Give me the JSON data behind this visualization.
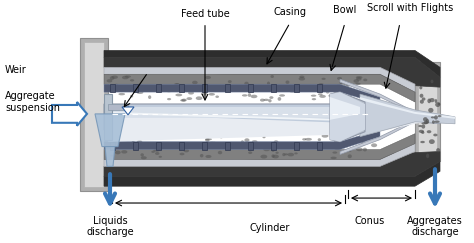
{
  "background_color": "#ffffff",
  "labels": {
    "feed_tube": "Feed tube",
    "casing": "Casing",
    "bowl": "Bowl",
    "scroll": "Scroll with Flights",
    "aggregate_suspension": "Aggregate\nsuspension",
    "weir": "Weir",
    "liquids_discharge": "Liquids\ndischarge",
    "cylinder": "Cylinder",
    "conus": "Conus",
    "aggregates_discharge": "Aggregates\ndischarge"
  },
  "figsize": [
    4.74,
    2.43
  ],
  "dpi": 100,
  "colors": {
    "casing_dark": "#2d2d2d",
    "dark_gray": "#444444",
    "mid_gray": "#888888",
    "light_gray": "#c8c8c8",
    "silver": "#d8d8d8",
    "white_gray": "#eeeeee",
    "bowl_inner": "#b0b8c8",
    "scroll_blue": "#7080a0",
    "scroll_dark": "#505870",
    "scroll_light": "#9098b0",
    "feed_tube_color": "#c0ccdc",
    "aggregate_gray": "#808080",
    "aggregate_dark": "#505050",
    "gravel_light": "#a0a0a0",
    "blue_light": "#8ab0d0",
    "arrow_blue": "#3878b8",
    "conus_light": "#d0d8e8",
    "weir_color": "#b0b8c8",
    "inner_bright": "#dde4ee",
    "flight_color": "#505870",
    "frame_gray": "#b0b0b0",
    "outer_dark": "#383838"
  }
}
